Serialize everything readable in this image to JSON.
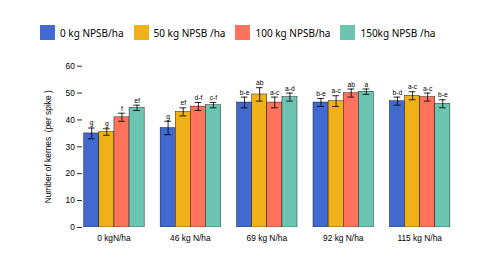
{
  "chart_data": {
    "type": "bar",
    "categories": [
      "0 kgN/ha",
      "46 kg N/ha",
      "69 kg N/ha",
      "92 kg N/ha",
      "115 kg N/ha"
    ],
    "series": [
      {
        "name": "0 kg NPSB/ha",
        "values": [
          35.0,
          37.0,
          46.5,
          46.5,
          47.0
        ],
        "errors": [
          2.0,
          2.5,
          2.0,
          1.5,
          1.5
        ],
        "annotations": [
          "g",
          "g",
          "b-e",
          "b-e",
          "b-d"
        ]
      },
      {
        "name": "50 kg NPSB /ha",
        "values": [
          35.5,
          43.0,
          49.5,
          47.0,
          49.0
        ],
        "errors": [
          1.2,
          1.5,
          2.5,
          2.0,
          1.5
        ],
        "annotations": [
          "g",
          "ef",
          "ab",
          "a-c",
          "a-c"
        ]
      },
      {
        "name": "100 kg NPSB/ha",
        "values": [
          41.0,
          45.0,
          46.5,
          50.0,
          48.5
        ],
        "errors": [
          1.5,
          1.5,
          2.0,
          1.5,
          1.5
        ],
        "annotations": [
          "f",
          "d-f",
          "a-c",
          "ab",
          "a-c"
        ]
      },
      {
        "name": "150kg NPSB /ha",
        "values": [
          44.5,
          45.5,
          48.5,
          50.5,
          46.0
        ],
        "errors": [
          1.0,
          1.0,
          1.5,
          1.0,
          1.5
        ],
        "annotations": [
          "ef",
          "c-f",
          "a-d",
          "a",
          "b-e"
        ]
      }
    ],
    "ylabel": "Number of kernes  (per spike )",
    "ylim": [
      0,
      60
    ],
    "yticks": [
      0,
      10,
      20,
      30,
      40,
      50,
      60
    ],
    "grid": false,
    "legend": "top"
  }
}
